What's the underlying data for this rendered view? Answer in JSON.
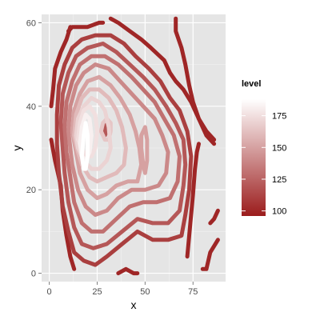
{
  "chart_data": {
    "type": "contour",
    "xlabel": "x",
    "ylabel": "y",
    "xlim": [
      -4,
      92
    ],
    "ylim": [
      -2,
      62
    ],
    "x_ticks": [
      0,
      25,
      50,
      75
    ],
    "y_ticks": [
      0,
      20,
      40,
      60
    ],
    "grid": true,
    "legend": {
      "title": "level",
      "position": "right",
      "ticks": [
        100,
        125,
        150,
        175
      ],
      "range": [
        96,
        188
      ],
      "color_low": "#9b1c1c",
      "color_high": "#ffffff"
    },
    "contours": [
      {
        "level": 100,
        "closed": false,
        "points": [
          [
            10,
            58
          ],
          [
            12,
            59
          ],
          [
            20,
            59
          ],
          [
            26,
            60
          ],
          [
            28,
            60
          ]
        ]
      },
      {
        "level": 100,
        "closed": false,
        "points": [
          [
            32,
            61
          ],
          [
            36,
            60
          ],
          [
            42,
            58
          ],
          [
            48,
            56
          ],
          [
            53,
            54
          ],
          [
            60,
            51
          ],
          [
            63,
            48
          ],
          [
            66,
            46
          ],
          [
            70,
            44
          ],
          [
            74,
            41
          ],
          [
            78,
            37
          ],
          [
            82,
            33
          ],
          [
            86,
            31
          ]
        ]
      },
      {
        "level": 100,
        "closed": false,
        "points": [
          [
            66,
            61
          ],
          [
            66,
            58
          ],
          [
            69,
            54
          ],
          [
            71,
            50
          ],
          [
            73,
            45
          ],
          [
            75,
            41
          ],
          [
            78,
            37
          ],
          [
            82,
            34
          ],
          [
            86,
            32
          ]
        ]
      },
      {
        "level": 100,
        "closed": false,
        "points": [
          [
            1,
            40
          ],
          [
            2,
            44
          ],
          [
            3,
            49
          ],
          [
            6,
            53
          ],
          [
            9,
            56
          ],
          [
            11,
            59
          ]
        ]
      },
      {
        "level": 100,
        "closed": false,
        "points": [
          [
            1,
            32
          ],
          [
            3,
            27
          ],
          [
            6,
            21
          ],
          [
            7,
            15
          ],
          [
            9,
            9
          ],
          [
            11,
            4
          ],
          [
            13,
            1
          ]
        ]
      },
      {
        "level": 100,
        "closed": false,
        "points": [
          [
            36,
            0
          ],
          [
            40,
            1
          ],
          [
            44,
            0
          ],
          [
            46,
            0
          ]
        ]
      },
      {
        "level": 100,
        "closed": false,
        "points": [
          [
            72,
            4
          ],
          [
            73,
            9
          ],
          [
            74,
            14
          ],
          [
            75,
            19
          ],
          [
            76,
            25
          ],
          [
            77,
            29
          ],
          [
            78,
            31
          ]
        ]
      },
      {
        "level": 100,
        "closed": false,
        "points": [
          [
            80,
            1
          ],
          [
            82,
            1
          ],
          [
            84,
            5
          ],
          [
            88,
            8
          ]
        ]
      },
      {
        "level": 100,
        "closed": false,
        "points": [
          [
            84,
            12
          ],
          [
            86,
            13
          ],
          [
            88,
            15
          ]
        ]
      },
      {
        "level": 110,
        "closed": true,
        "points": [
          [
            4,
            38
          ],
          [
            5,
            45
          ],
          [
            8,
            50
          ],
          [
            12,
            54
          ],
          [
            17,
            56
          ],
          [
            24,
            57
          ],
          [
            32,
            57
          ],
          [
            39,
            55
          ],
          [
            45,
            52
          ],
          [
            52,
            49
          ],
          [
            58,
            46
          ],
          [
            63,
            42
          ],
          [
            68,
            39
          ],
          [
            72,
            34
          ],
          [
            74,
            28
          ],
          [
            73,
            20
          ],
          [
            71,
            14
          ],
          [
            69,
            9
          ],
          [
            62,
            8
          ],
          [
            54,
            8
          ],
          [
            46,
            10
          ],
          [
            38,
            7
          ],
          [
            30,
            4
          ],
          [
            24,
            2
          ],
          [
            18,
            3
          ],
          [
            13,
            5
          ],
          [
            10,
            10
          ],
          [
            7,
            16
          ],
          [
            5,
            24
          ],
          [
            4,
            31
          ]
        ]
      },
      {
        "level": 120,
        "closed": true,
        "points": [
          [
            6,
            36
          ],
          [
            7,
            43
          ],
          [
            10,
            48
          ],
          [
            14,
            52
          ],
          [
            20,
            54
          ],
          [
            28,
            55
          ],
          [
            35,
            53
          ],
          [
            42,
            50
          ],
          [
            49,
            47
          ],
          [
            55,
            44
          ],
          [
            61,
            40
          ],
          [
            66,
            36
          ],
          [
            70,
            32
          ],
          [
            71,
            26
          ],
          [
            70,
            21
          ],
          [
            68,
            15
          ],
          [
            62,
            12
          ],
          [
            54,
            12
          ],
          [
            46,
            13
          ],
          [
            38,
            10
          ],
          [
            30,
            7
          ],
          [
            23,
            6
          ],
          [
            17,
            7
          ],
          [
            13,
            11
          ],
          [
            10,
            17
          ],
          [
            8,
            24
          ],
          [
            7,
            30
          ]
        ]
      },
      {
        "level": 130,
        "closed": true,
        "points": [
          [
            8,
            35
          ],
          [
            9,
            41
          ],
          [
            12,
            46
          ],
          [
            16,
            50
          ],
          [
            22,
            52
          ],
          [
            29,
            52
          ],
          [
            36,
            50
          ],
          [
            43,
            47
          ],
          [
            49,
            44
          ],
          [
            55,
            41
          ],
          [
            60,
            37
          ],
          [
            65,
            33
          ],
          [
            68,
            28
          ],
          [
            67,
            22
          ],
          [
            63,
            18
          ],
          [
            56,
            17
          ],
          [
            49,
            17
          ],
          [
            42,
            16
          ],
          [
            35,
            13
          ],
          [
            28,
            10
          ],
          [
            22,
            10
          ],
          [
            17,
            12
          ],
          [
            13,
            17
          ],
          [
            11,
            23
          ],
          [
            9,
            29
          ]
        ]
      },
      {
        "level": 140,
        "closed": true,
        "points": [
          [
            10,
            34
          ],
          [
            11,
            40
          ],
          [
            14,
            45
          ],
          [
            18,
            48
          ],
          [
            24,
            50
          ],
          [
            31,
            49
          ],
          [
            37,
            46
          ],
          [
            43,
            43
          ],
          [
            49,
            40
          ],
          [
            55,
            37
          ],
          [
            59,
            33
          ],
          [
            62,
            29
          ],
          [
            61,
            24
          ],
          [
            57,
            21
          ],
          [
            50,
            20
          ],
          [
            43,
            20
          ],
          [
            36,
            18
          ],
          [
            30,
            15
          ],
          [
            24,
            14
          ],
          [
            19,
            16
          ],
          [
            15,
            20
          ],
          [
            12,
            26
          ],
          [
            11,
            30
          ]
        ]
      },
      {
        "level": 150,
        "closed": true,
        "points": [
          [
            12,
            34
          ],
          [
            13,
            39
          ],
          [
            16,
            43
          ],
          [
            20,
            46
          ],
          [
            26,
            47
          ],
          [
            32,
            45
          ],
          [
            37,
            42
          ],
          [
            42,
            38
          ],
          [
            45,
            34
          ],
          [
            47,
            30
          ],
          [
            48,
            26
          ],
          [
            46,
            22
          ],
          [
            41,
            22
          ],
          [
            35,
            21
          ],
          [
            30,
            19
          ],
          [
            25,
            18
          ],
          [
            20,
            20
          ],
          [
            16,
            24
          ],
          [
            14,
            29
          ]
        ]
      },
      {
        "level": 150,
        "closed": true,
        "points": [
          [
            48,
            30
          ],
          [
            49,
            26
          ],
          [
            50,
            24
          ],
          [
            51,
            27
          ],
          [
            51,
            32
          ],
          [
            50,
            35
          ],
          [
            48,
            33
          ]
        ]
      },
      {
        "level": 160,
        "closed": true,
        "points": [
          [
            13,
            33
          ],
          [
            14,
            38
          ],
          [
            17,
            42
          ],
          [
            21,
            44
          ],
          [
            26,
            44
          ],
          [
            31,
            42
          ],
          [
            35,
            39
          ],
          [
            38,
            35
          ],
          [
            40,
            30
          ],
          [
            39,
            26
          ],
          [
            35,
            24
          ],
          [
            30,
            23
          ],
          [
            25,
            22
          ],
          [
            21,
            23
          ],
          [
            17,
            26
          ],
          [
            15,
            29
          ]
        ]
      },
      {
        "level": 170,
        "closed": true,
        "points": [
          [
            14,
            33
          ],
          [
            15,
            37
          ],
          [
            18,
            40
          ],
          [
            22,
            42
          ],
          [
            26,
            41
          ],
          [
            29,
            39
          ],
          [
            31,
            35
          ],
          [
            32,
            30
          ],
          [
            30,
            27
          ],
          [
            26,
            25
          ],
          [
            22,
            25
          ],
          [
            18,
            27
          ],
          [
            15,
            30
          ]
        ]
      },
      {
        "level": 165,
        "closed": true,
        "points": [
          [
            27,
            34
          ],
          [
            28,
            36
          ],
          [
            30,
            37
          ],
          [
            32,
            36
          ],
          [
            32,
            34
          ],
          [
            31,
            32
          ],
          [
            29,
            32
          ],
          [
            28,
            33
          ]
        ]
      },
      {
        "level": 175,
        "closed": true,
        "points": [
          [
            15,
            32
          ],
          [
            16,
            36
          ],
          [
            18,
            39
          ],
          [
            21,
            40
          ],
          [
            24,
            38
          ],
          [
            25,
            34
          ],
          [
            24,
            30
          ],
          [
            22,
            28
          ],
          [
            19,
            28
          ],
          [
            17,
            30
          ]
        ]
      },
      {
        "level": 120,
        "closed": true,
        "points": [
          [
            28,
            35
          ],
          [
            29,
            36
          ],
          [
            30,
            35
          ],
          [
            30,
            34
          ],
          [
            29,
            33
          ],
          [
            28,
            34
          ]
        ]
      },
      {
        "level": 182,
        "closed": true,
        "points": [
          [
            16,
            31
          ],
          [
            17,
            35
          ],
          [
            19,
            38
          ],
          [
            21,
            37
          ],
          [
            22,
            33
          ],
          [
            21,
            29
          ],
          [
            19,
            27
          ],
          [
            17,
            28
          ]
        ]
      },
      {
        "level": 188,
        "closed": true,
        "points": [
          [
            17,
            28
          ],
          [
            18,
            33
          ],
          [
            19,
            36
          ],
          [
            20,
            33
          ],
          [
            20,
            28
          ],
          [
            19,
            25
          ],
          [
            18,
            25
          ]
        ]
      }
    ]
  }
}
